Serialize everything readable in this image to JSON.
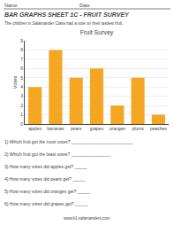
{
  "chart_data": {
    "type": "bar",
    "title": "Fruit Survey",
    "subtitle": "The children in Salamander Class had a vote on their tastiest fruit.",
    "categories": [
      "apples",
      "bananas",
      "pears",
      "grapes",
      "oranges",
      "plums",
      "peaches"
    ],
    "values": [
      4,
      8,
      5,
      6,
      2,
      5,
      1
    ],
    "color": "#F5A623",
    "ylabel": "Votes",
    "ylim": [
      0,
      9
    ],
    "yticks": [
      0,
      1,
      2,
      3,
      4,
      5,
      6,
      7,
      8,
      9
    ],
    "grid": true,
    "annotations": [
      "Name",
      "Date",
      "BAR GRAPHS SHEET 1C - FRUIT SURVEY",
      "1) Which fruit got the most votes? _________________________",
      "2) Which fruit got the least votes? ________________",
      "3) How many votes did apples get? _____",
      "4) How many votes did pears get? _____",
      "5) How many votes did oranges get? _____",
      "6) How many votes did grapes get? _____",
      "www.k1-salamanders.com"
    ]
  }
}
